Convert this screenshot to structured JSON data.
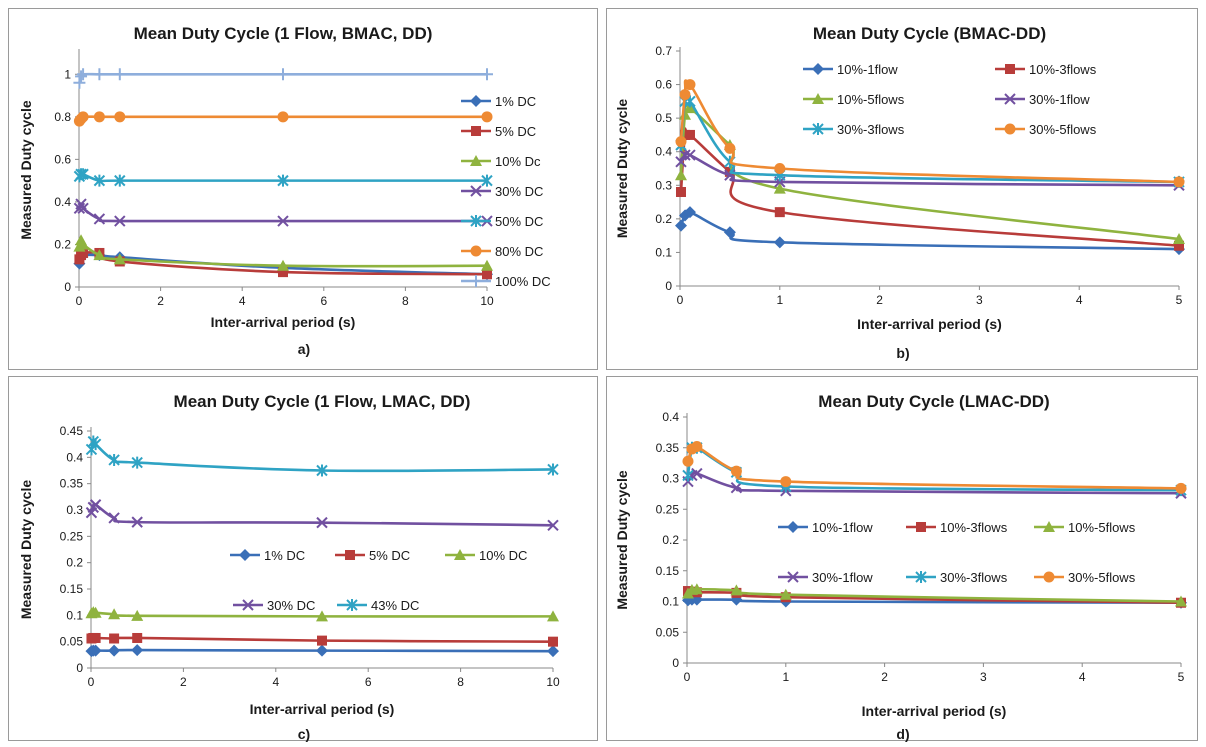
{
  "colors": {
    "blue": "#3a6fb7",
    "red": "#b83c3a",
    "green": "#8fb33f",
    "purple": "#7150a0",
    "teal": "#2fa3c4",
    "orange": "#ee8a33",
    "lightblue": "#8eaedc"
  },
  "chart_data": [
    {
      "type": "line",
      "title": "Mean Duty Cycle (1 Flow, BMAC, DD)",
      "xlabel": "Inter-arrival period (s)",
      "ylabel": "Measured Duty cycle",
      "caption": "a)",
      "xlim": [
        0,
        10
      ],
      "xticks": [
        0,
        2,
        4,
        6,
        8,
        10
      ],
      "ylim": [
        0,
        1.1
      ],
      "yticks": [
        0,
        0.2,
        0.4,
        0.6,
        0.8,
        1
      ],
      "legend": "right",
      "series": [
        {
          "name": "1% DC",
          "color": "blue",
          "marker": "diamond",
          "x": [
            0.01,
            0.05,
            0.1,
            0.5,
            1,
            5,
            10
          ],
          "y": [
            0.11,
            0.14,
            0.15,
            0.15,
            0.14,
            0.09,
            0.06
          ]
        },
        {
          "name": "5% DC",
          "color": "red",
          "marker": "square",
          "x": [
            0.01,
            0.05,
            0.1,
            0.5,
            1,
            5,
            10
          ],
          "y": [
            0.13,
            0.15,
            0.16,
            0.16,
            0.12,
            0.07,
            0.06
          ]
        },
        {
          "name": "10% Dc",
          "color": "green",
          "marker": "triangle",
          "x": [
            0.01,
            0.05,
            0.1,
            0.5,
            1,
            5,
            10
          ],
          "y": [
            0.19,
            0.22,
            0.2,
            0.15,
            0.13,
            0.1,
            0.1
          ]
        },
        {
          "name": "30% DC",
          "color": "purple",
          "marker": "star",
          "x": [
            0.01,
            0.05,
            0.1,
            0.5,
            1,
            5,
            10
          ],
          "y": [
            0.37,
            0.39,
            0.37,
            0.32,
            0.31,
            0.31,
            0.31
          ]
        },
        {
          "name": "50% DC",
          "color": "teal",
          "marker": "asterisk",
          "x": [
            0.01,
            0.05,
            0.1,
            0.5,
            1,
            5,
            10
          ],
          "y": [
            0.52,
            0.53,
            0.53,
            0.5,
            0.5,
            0.5,
            0.5
          ]
        },
        {
          "name": "80% DC",
          "color": "orange",
          "marker": "circle",
          "x": [
            0.01,
            0.05,
            0.1,
            0.5,
            1,
            5,
            10
          ],
          "y": [
            0.78,
            0.79,
            0.8,
            0.8,
            0.8,
            0.8,
            0.8
          ]
        },
        {
          "name": "100% DC",
          "color": "lightblue",
          "marker": "plus",
          "x": [
            0.01,
            0.05,
            0.1,
            0.5,
            1,
            5,
            10
          ],
          "y": [
            0.96,
            0.99,
            1.0,
            1.0,
            1.0,
            1.0,
            1.0
          ]
        }
      ]
    },
    {
      "type": "line",
      "title": "Mean Duty Cycle (BMAC-DD)",
      "xlabel": "Inter-arrival period (s)",
      "ylabel": "Measured Duty cycle",
      "caption": "b)",
      "xlim": [
        0,
        5
      ],
      "xticks": [
        0,
        1,
        2,
        3,
        4,
        5
      ],
      "ylim": [
        0,
        0.7
      ],
      "yticks": [
        0,
        0.1,
        0.2,
        0.3,
        0.4,
        0.5,
        0.6,
        0.7
      ],
      "legend": "top",
      "series": [
        {
          "name": "10%-1flow",
          "color": "blue",
          "marker": "diamond",
          "x": [
            0.01,
            0.05,
            0.1,
            0.5,
            1,
            5
          ],
          "y": [
            0.18,
            0.21,
            0.22,
            0.16,
            0.13,
            0.11
          ]
        },
        {
          "name": "10%-3flows",
          "color": "red",
          "marker": "square",
          "x": [
            0.01,
            0.05,
            0.1,
            0.5,
            1,
            5
          ],
          "y": [
            0.28,
            0.45,
            0.45,
            0.34,
            0.22,
            0.12
          ]
        },
        {
          "name": "10%-5flows",
          "color": "green",
          "marker": "triangle",
          "x": [
            0.01,
            0.05,
            0.1,
            0.5,
            1,
            5
          ],
          "y": [
            0.33,
            0.51,
            0.53,
            0.42,
            0.29,
            0.14
          ]
        },
        {
          "name": "30%-1flow",
          "color": "purple",
          "marker": "star",
          "x": [
            0.01,
            0.05,
            0.1,
            0.5,
            1,
            5
          ],
          "y": [
            0.37,
            0.39,
            0.39,
            0.33,
            0.31,
            0.3
          ]
        },
        {
          "name": "30%-3flows",
          "color": "teal",
          "marker": "asterisk",
          "x": [
            0.01,
            0.05,
            0.1,
            0.5,
            1,
            5
          ],
          "y": [
            0.42,
            0.55,
            0.55,
            0.37,
            0.33,
            0.31
          ]
        },
        {
          "name": "30%-5flows",
          "color": "orange",
          "marker": "circle",
          "x": [
            0.01,
            0.05,
            0.1,
            0.5,
            1,
            5
          ],
          "y": [
            0.43,
            0.57,
            0.6,
            0.41,
            0.35,
            0.31
          ]
        }
      ]
    },
    {
      "type": "line",
      "title": "Mean Duty Cycle (1 Flow, LMAC, DD)",
      "xlabel": "Inter-arrival period (s)",
      "ylabel": "Measured Duty cycle",
      "caption": "c)",
      "xlim": [
        0,
        10
      ],
      "xticks": [
        0,
        2,
        4,
        6,
        8,
        10
      ],
      "ylim": [
        0,
        0.45
      ],
      "yticks": [
        0,
        0.05,
        0.1,
        0.15,
        0.2,
        0.25,
        0.3,
        0.35,
        0.4,
        0.45
      ],
      "legend": "center",
      "series": [
        {
          "name": "1% DC",
          "color": "blue",
          "marker": "diamond",
          "x": [
            0.01,
            0.05,
            0.1,
            0.5,
            1,
            5,
            10
          ],
          "y": [
            0.032,
            0.033,
            0.033,
            0.033,
            0.034,
            0.033,
            0.032
          ]
        },
        {
          "name": "5% DC",
          "color": "red",
          "marker": "square",
          "x": [
            0.01,
            0.05,
            0.1,
            0.5,
            1,
            5,
            10
          ],
          "y": [
            0.056,
            0.057,
            0.057,
            0.056,
            0.057,
            0.052,
            0.05
          ]
        },
        {
          "name": "10% DC",
          "color": "green",
          "marker": "triangle",
          "x": [
            0.01,
            0.05,
            0.1,
            0.5,
            1,
            5,
            10
          ],
          "y": [
            0.104,
            0.106,
            0.105,
            0.102,
            0.099,
            0.098,
            0.098
          ]
        },
        {
          "name": "30% DC",
          "color": "purple",
          "marker": "star",
          "x": [
            0.01,
            0.05,
            0.1,
            0.5,
            1,
            5,
            10
          ],
          "y": [
            0.295,
            0.305,
            0.31,
            0.285,
            0.277,
            0.276,
            0.271
          ]
        },
        {
          "name": "43% DC",
          "color": "teal",
          "marker": "asterisk",
          "x": [
            0.01,
            0.05,
            0.1,
            0.5,
            1,
            5,
            10
          ],
          "y": [
            0.415,
            0.43,
            0.425,
            0.395,
            0.39,
            0.375,
            0.377
          ]
        }
      ]
    },
    {
      "type": "line",
      "title": "Mean Duty Cycle (LMAC-DD)",
      "xlabel": "Inter-arrival period (s)",
      "ylabel": "Measured Duty cycle",
      "caption": "d)",
      "xlim": [
        0,
        5
      ],
      "xticks": [
        0,
        1,
        2,
        3,
        4,
        5
      ],
      "ylim": [
        0,
        0.4
      ],
      "yticks": [
        0,
        0.05,
        0.1,
        0.15,
        0.2,
        0.25,
        0.3,
        0.35,
        0.4
      ],
      "legend": "center",
      "series": [
        {
          "name": "10%-1flow",
          "color": "blue",
          "marker": "diamond",
          "x": [
            0.01,
            0.05,
            0.1,
            0.5,
            1,
            5
          ],
          "y": [
            0.102,
            0.103,
            0.103,
            0.103,
            0.1,
            0.098
          ]
        },
        {
          "name": "10%-3flows",
          "color": "red",
          "marker": "square",
          "x": [
            0.01,
            0.05,
            0.1,
            0.5,
            1,
            5
          ],
          "y": [
            0.117,
            0.116,
            0.115,
            0.114,
            0.107,
            0.098
          ]
        },
        {
          "name": "10%-5flows",
          "color": "green",
          "marker": "triangle",
          "x": [
            0.01,
            0.05,
            0.1,
            0.5,
            1,
            5
          ],
          "y": [
            0.113,
            0.119,
            0.12,
            0.118,
            0.111,
            0.1
          ]
        },
        {
          "name": "30%-1flow",
          "color": "purple",
          "marker": "star",
          "x": [
            0.01,
            0.05,
            0.1,
            0.5,
            1,
            5
          ],
          "y": [
            0.295,
            0.305,
            0.308,
            0.285,
            0.28,
            0.276
          ]
        },
        {
          "name": "30%-3flows",
          "color": "teal",
          "marker": "asterisk",
          "x": [
            0.01,
            0.05,
            0.1,
            0.5,
            1,
            5
          ],
          "y": [
            0.305,
            0.35,
            0.35,
            0.31,
            0.287,
            0.281
          ]
        },
        {
          "name": "30%-5flows",
          "color": "orange",
          "marker": "circle",
          "x": [
            0.01,
            0.05,
            0.1,
            0.5,
            1,
            5
          ],
          "y": [
            0.328,
            0.348,
            0.352,
            0.312,
            0.295,
            0.284
          ]
        }
      ]
    }
  ]
}
